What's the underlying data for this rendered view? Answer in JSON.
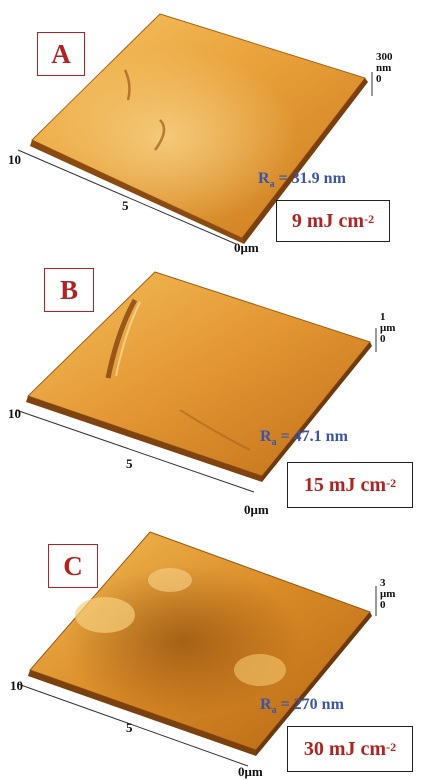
{
  "panels": [
    {
      "label": "A",
      "energy_value": "9 mJ cm",
      "energy_exp": "-2",
      "ra_prefix": "R",
      "ra_sub": "a",
      "ra_text": " = 31.9 nm",
      "axis_ticks": {
        "t10": "10",
        "t5": "5",
        "t0": "0μm"
      },
      "z_scale": {
        "top": "300",
        "unit": "nm",
        "zero": "0"
      }
    },
    {
      "label": "B",
      "energy_value": "15 mJ cm",
      "energy_exp": "-2",
      "ra_prefix": "R",
      "ra_sub": "a",
      "ra_text": " = 47.1 nm",
      "axis_ticks": {
        "t10": "10",
        "t5": "5",
        "t0": "0μm"
      },
      "z_scale": {
        "top": "1",
        "unit": "μm",
        "zero": "0"
      }
    },
    {
      "label": "C",
      "energy_value": "30 mJ cm",
      "energy_exp": "-2",
      "ra_prefix": "R",
      "ra_sub": "a",
      "ra_text": " = 270 nm",
      "axis_ticks": {
        "t10": "10",
        "t5": "5",
        "t0": "0μm"
      },
      "z_scale": {
        "top": "3",
        "unit": "μm",
        "zero": "0"
      }
    }
  ],
  "colors": {
    "surface_light": "#f2b44a",
    "surface_mid": "#d98a22",
    "surface_dark": "#9a5410",
    "label_red": "#b22222",
    "ra_blue": "#3b55a8"
  }
}
